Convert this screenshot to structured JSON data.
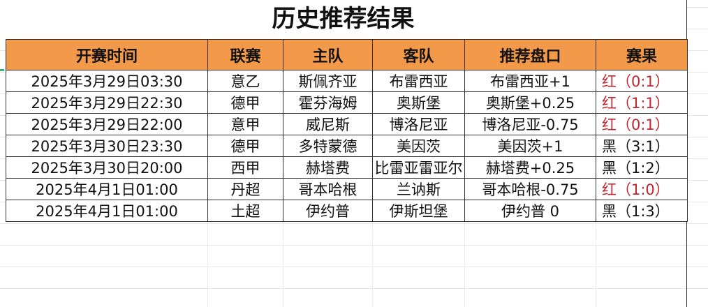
{
  "title": "历史推荐结果",
  "columns": [
    "开赛时间",
    "联赛",
    "主队",
    "客队",
    "推荐盘口",
    "赛果"
  ],
  "rows": [
    {
      "time": "2025年3月29日03:30",
      "league": "意乙",
      "home": "斯佩齐亚",
      "away": "布雷西亚",
      "pick": "布雷西亚+1",
      "result": "红（0:1）",
      "status": "red"
    },
    {
      "time": "2025年3月29日22:30",
      "league": "德甲",
      "home": "霍芬海姆",
      "away": "奥斯堡",
      "pick": "奥斯堡+0.25",
      "result": "红（1:1）",
      "status": "red"
    },
    {
      "time": "2025年3月29日22:00",
      "league": "意甲",
      "home": "威尼斯",
      "away": "博洛尼亚",
      "pick": "博洛尼亚-0.75",
      "result": "红（0:1）",
      "status": "red"
    },
    {
      "time": "2025年3月30日23:30",
      "league": "德甲",
      "home": "多特蒙德",
      "away": "美因茨",
      "pick": "美因茨+1",
      "result": "黑（3:1）",
      "status": "black"
    },
    {
      "time": "2025年3月30日20:00",
      "league": "西甲",
      "home": "赫塔费",
      "away": "比雷亚雷亚尔",
      "pick": "赫塔费+0.25",
      "result": "黑（1:2）",
      "status": "black"
    },
    {
      "time": "2025年4月1日01:00",
      "league": "丹超",
      "home": "哥本哈根",
      "away": "兰讷斯",
      "pick": "哥本哈根-0.75",
      "result": "红（1:0）",
      "status": "red"
    },
    {
      "time": "2025年4月1日01:00",
      "league": "土超",
      "home": "伊约普",
      "away": "伊斯坦堡",
      "pick": "伊约普 0",
      "result": "黑（1:3）",
      "status": "black"
    }
  ],
  "colors": {
    "header": "#f39a4a",
    "red": "#c0262d",
    "black": "#111111"
  }
}
